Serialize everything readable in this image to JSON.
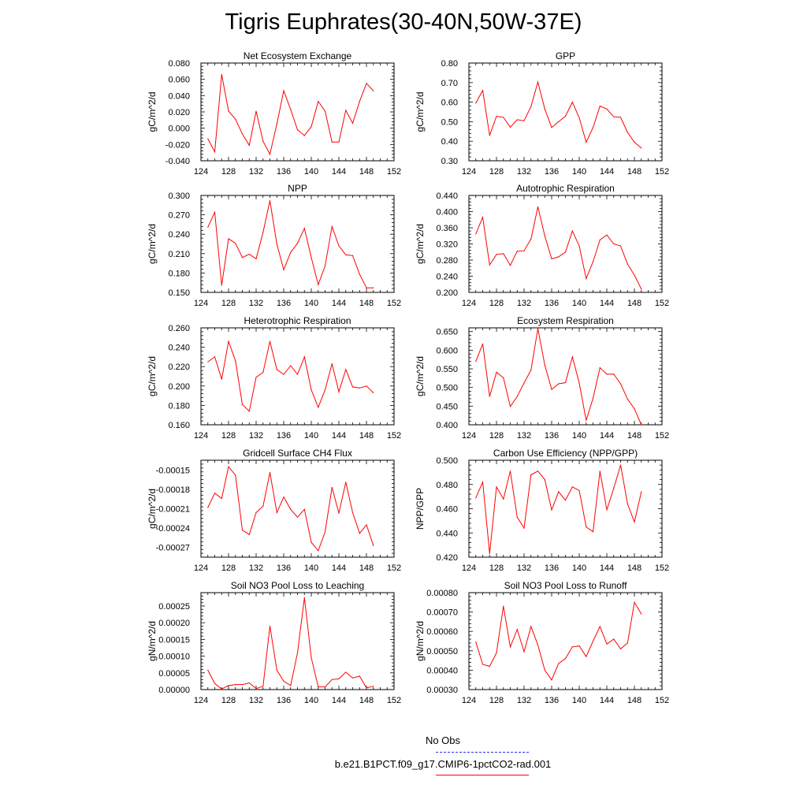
{
  "title": "Tigris Euphrates(30-40N,50W-37E)",
  "legend": {
    "obs_label": "No Obs",
    "obs_color": "#2a2aff",
    "case_label": "b.e21.B1PCT.f09_g17.CMIP6-1pctCO2-rad.001",
    "case_color": "#ff0000"
  },
  "chart_data": [
    {
      "type": "line",
      "title": "Net Ecosystem Exchange",
      "ylabel": "gC/m^2/d",
      "xlabel": "",
      "xlim": [
        124,
        152
      ],
      "xticks": [
        "124",
        "128",
        "132",
        "136",
        "140",
        "144",
        "148",
        "152"
      ],
      "ylim": [
        -0.04,
        0.08
      ],
      "yticks": [
        "0.080",
        "0.060",
        "0.040",
        "0.020",
        "0.000",
        "-0.020",
        "-0.040"
      ],
      "x": [
        125,
        126,
        127,
        128,
        129,
        130,
        131,
        132,
        133,
        134,
        135,
        136,
        137,
        138,
        139,
        140,
        141,
        142,
        143,
        144,
        145,
        146,
        147,
        148,
        149
      ],
      "values": [
        -0.013,
        -0.029,
        0.066,
        0.021,
        0.011,
        -0.007,
        -0.021,
        0.021,
        -0.016,
        -0.032,
        0.005,
        0.046,
        0.023,
        -0.002,
        -0.009,
        0.002,
        0.033,
        0.021,
        -0.017,
        -0.017,
        0.022,
        0.006,
        0.033,
        0.055,
        0.046
      ]
    },
    {
      "type": "line",
      "title": "GPP",
      "ylabel": "gC/m^2/d",
      "xlabel": "",
      "xlim": [
        124,
        152
      ],
      "xticks": [
        "124",
        "128",
        "132",
        "136",
        "140",
        "144",
        "148",
        "152"
      ],
      "ylim": [
        0.3,
        0.8
      ],
      "yticks": [
        "0.80",
        "0.70",
        "0.60",
        "0.50",
        "0.40",
        "0.30"
      ],
      "x": [
        125,
        126,
        127,
        128,
        129,
        130,
        131,
        132,
        133,
        134,
        135,
        136,
        137,
        138,
        139,
        140,
        141,
        142,
        143,
        144,
        145,
        146,
        147,
        148,
        149
      ],
      "values": [
        0.595,
        0.66,
        0.43,
        0.528,
        0.522,
        0.472,
        0.51,
        0.505,
        0.578,
        0.703,
        0.565,
        0.47,
        0.5,
        0.528,
        0.6,
        0.52,
        0.395,
        0.47,
        0.58,
        0.565,
        0.525,
        0.522,
        0.445,
        0.395,
        0.365
      ]
    },
    {
      "type": "line",
      "title": "NPP",
      "ylabel": "gC/m^2/d",
      "xlabel": "",
      "xlim": [
        124,
        152
      ],
      "xticks": [
        "124",
        "128",
        "132",
        "136",
        "140",
        "144",
        "148",
        "152"
      ],
      "ylim": [
        0.15,
        0.3
      ],
      "yticks": [
        "0.300",
        "0.270",
        "0.240",
        "0.210",
        "0.180",
        "0.150"
      ],
      "x": [
        125,
        126,
        127,
        128,
        129,
        130,
        131,
        132,
        133,
        134,
        135,
        136,
        137,
        138,
        139,
        140,
        141,
        142,
        143,
        144,
        145,
        146,
        147,
        148,
        149
      ],
      "values": [
        0.251,
        0.274,
        0.161,
        0.233,
        0.226,
        0.204,
        0.209,
        0.202,
        0.243,
        0.292,
        0.225,
        0.185,
        0.212,
        0.226,
        0.249,
        0.204,
        0.162,
        0.191,
        0.252,
        0.222,
        0.208,
        0.207,
        0.178,
        0.157,
        0.157
      ]
    },
    {
      "type": "line",
      "title": "Autotrophic Respiration",
      "ylabel": "gC/m^2/d",
      "xlabel": "",
      "xlim": [
        124,
        152
      ],
      "xticks": [
        "124",
        "128",
        "132",
        "136",
        "140",
        "144",
        "148",
        "152"
      ],
      "ylim": [
        0.2,
        0.44
      ],
      "yticks": [
        "0.440",
        "0.400",
        "0.360",
        "0.320",
        "0.280",
        "0.240",
        "0.200"
      ],
      "x": [
        125,
        126,
        127,
        128,
        129,
        130,
        131,
        132,
        133,
        134,
        135,
        136,
        137,
        138,
        139,
        140,
        141,
        142,
        143,
        144,
        145,
        146,
        147,
        148,
        149
      ],
      "values": [
        0.345,
        0.386,
        0.268,
        0.294,
        0.296,
        0.267,
        0.302,
        0.303,
        0.332,
        0.412,
        0.34,
        0.283,
        0.288,
        0.3,
        0.352,
        0.315,
        0.234,
        0.276,
        0.33,
        0.342,
        0.32,
        0.315,
        0.27,
        0.243,
        0.208
      ]
    },
    {
      "type": "line",
      "title": "Heterotrophic Respiration",
      "ylabel": "gC/m^2/d",
      "xlabel": "",
      "xlim": [
        124,
        152
      ],
      "xticks": [
        "124",
        "128",
        "132",
        "136",
        "140",
        "144",
        "148",
        "152"
      ],
      "ylim": [
        0.16,
        0.26
      ],
      "yticks": [
        "0.260",
        "0.240",
        "0.220",
        "0.200",
        "0.180",
        "0.160"
      ],
      "x": [
        125,
        126,
        127,
        128,
        129,
        130,
        131,
        132,
        133,
        134,
        135,
        136,
        137,
        138,
        139,
        140,
        141,
        142,
        143,
        144,
        145,
        146,
        147,
        148,
        149
      ],
      "values": [
        0.225,
        0.23,
        0.207,
        0.246,
        0.226,
        0.181,
        0.174,
        0.209,
        0.214,
        0.246,
        0.217,
        0.212,
        0.221,
        0.212,
        0.23,
        0.196,
        0.178,
        0.196,
        0.223,
        0.194,
        0.217,
        0.199,
        0.198,
        0.2,
        0.193
      ]
    },
    {
      "type": "line",
      "title": "Ecosystem Respiration",
      "ylabel": "gC/m^2/d",
      "xlabel": "",
      "xlim": [
        124,
        152
      ],
      "xticks": [
        "124",
        "128",
        "132",
        "136",
        "140",
        "144",
        "148",
        "152"
      ],
      "ylim": [
        0.4,
        0.66
      ],
      "yticks": [
        "0.650",
        "0.600",
        "0.550",
        "0.500",
        "0.450",
        "0.400"
      ],
      "x": [
        125,
        126,
        127,
        128,
        129,
        130,
        131,
        132,
        133,
        134,
        135,
        136,
        137,
        138,
        139,
        140,
        141,
        142,
        143,
        144,
        145,
        146,
        147,
        148,
        149
      ],
      "values": [
        0.57,
        0.617,
        0.476,
        0.541,
        0.526,
        0.449,
        0.476,
        0.512,
        0.547,
        0.658,
        0.56,
        0.495,
        0.51,
        0.513,
        0.582,
        0.512,
        0.412,
        0.471,
        0.553,
        0.536,
        0.536,
        0.51,
        0.469,
        0.443,
        0.4
      ]
    },
    {
      "type": "line",
      "title": "Gridcell Surface CH4 Flux",
      "ylabel": "gC/m^2/d",
      "xlabel": "",
      "xlim": [
        124,
        152
      ],
      "xticks": [
        "124",
        "128",
        "132",
        "136",
        "140",
        "144",
        "148",
        "152"
      ],
      "ylim": [
        -0.000285,
        -0.000135
      ],
      "yticks": [
        "-0.00015",
        "-0.00018",
        "-0.00021",
        "-0.00024",
        "-0.00027"
      ],
      "x": [
        125,
        126,
        127,
        128,
        129,
        130,
        131,
        132,
        133,
        134,
        135,
        136,
        137,
        138,
        139,
        140,
        141,
        142,
        143,
        144,
        145,
        146,
        147,
        148,
        149
      ],
      "values": [
        -0.000208,
        -0.000186,
        -0.000194,
        -0.000145,
        -0.000158,
        -0.000243,
        -0.00025,
        -0.000216,
        -0.000206,
        -0.000154,
        -0.000216,
        -0.000192,
        -0.000211,
        -0.000223,
        -0.000211,
        -0.000262,
        -0.000275,
        -0.000246,
        -0.000177,
        -0.000217,
        -0.000169,
        -0.000216,
        -0.000248,
        -0.000235,
        -0.000267
      ]
    },
    {
      "type": "line",
      "title": "Carbon Use Efficiency (NPP/GPP)",
      "ylabel": "NPP/GPP",
      "xlabel": "",
      "xlim": [
        124,
        152
      ],
      "xticks": [
        "124",
        "128",
        "132",
        "136",
        "140",
        "144",
        "148",
        "152"
      ],
      "ylim": [
        0.42,
        0.5
      ],
      "yticks": [
        "0.500",
        "0.480",
        "0.460",
        "0.440",
        "0.420"
      ],
      "x": [
        125,
        126,
        127,
        128,
        129,
        130,
        131,
        132,
        133,
        134,
        135,
        136,
        137,
        138,
        139,
        140,
        141,
        142,
        143,
        144,
        145,
        146,
        147,
        148,
        149
      ],
      "values": [
        0.469,
        0.482,
        0.423,
        0.478,
        0.468,
        0.491,
        0.453,
        0.444,
        0.488,
        0.491,
        0.484,
        0.459,
        0.474,
        0.467,
        0.478,
        0.475,
        0.445,
        0.441,
        0.491,
        0.459,
        0.477,
        0.496,
        0.464,
        0.449,
        0.474
      ]
    },
    {
      "type": "line",
      "title": "Soil NO3 Pool Loss to Leaching",
      "ylabel": "gN/m^2/d",
      "xlabel": "",
      "xlim": [
        124,
        152
      ],
      "xticks": [
        "124",
        "128",
        "132",
        "136",
        "140",
        "144",
        "148",
        "152"
      ],
      "ylim": [
        0,
        0.00029
      ],
      "yticks": [
        "0.00025",
        "0.00020",
        "0.00015",
        "0.00010",
        "0.00005",
        "0.00000"
      ],
      "x": [
        125,
        126,
        127,
        128,
        129,
        130,
        131,
        132,
        133,
        134,
        135,
        136,
        137,
        138,
        139,
        140,
        141,
        142,
        143,
        144,
        145,
        146,
        147,
        148,
        149
      ],
      "values": [
        5.8e-05,
        1.8e-05,
        2e-06,
        1.2e-05,
        1.5e-05,
        1.5e-05,
        2e-05,
        3e-06,
        1e-05,
        0.00019,
        5.8e-05,
        2.5e-05,
        1.2e-05,
        0.00011,
        0.000275,
        9.5e-05,
        8e-06,
        8e-06,
        3e-05,
        3.2e-05,
        5.2e-05,
        3.5e-05,
        4e-05,
        5e-06,
        1e-05
      ]
    },
    {
      "type": "line",
      "title": "Soil NO3 Pool Loss to Runoff",
      "ylabel": "gN/m^2/d",
      "xlabel": "",
      "xlim": [
        124,
        152
      ],
      "xticks": [
        "124",
        "128",
        "132",
        "136",
        "140",
        "144",
        "148",
        "152"
      ],
      "ylim": [
        0.0003,
        0.0008
      ],
      "yticks": [
        "0.00080",
        "0.00070",
        "0.00060",
        "0.00050",
        "0.00040",
        "0.00030"
      ],
      "x": [
        125,
        126,
        127,
        128,
        129,
        130,
        131,
        132,
        133,
        134,
        135,
        136,
        137,
        138,
        139,
        140,
        141,
        142,
        143,
        144,
        145,
        146,
        147,
        148,
        149
      ],
      "values": [
        0.000545,
        0.00043,
        0.00042,
        0.00049,
        0.00073,
        0.00052,
        0.00061,
        0.000495,
        0.000625,
        0.00053,
        0.0004,
        0.00035,
        0.000435,
        0.00046,
        0.00052,
        0.000525,
        0.00047,
        0.00055,
        0.000625,
        0.000535,
        0.00056,
        0.00051,
        0.00054,
        0.00075,
        0.00069
      ]
    }
  ]
}
